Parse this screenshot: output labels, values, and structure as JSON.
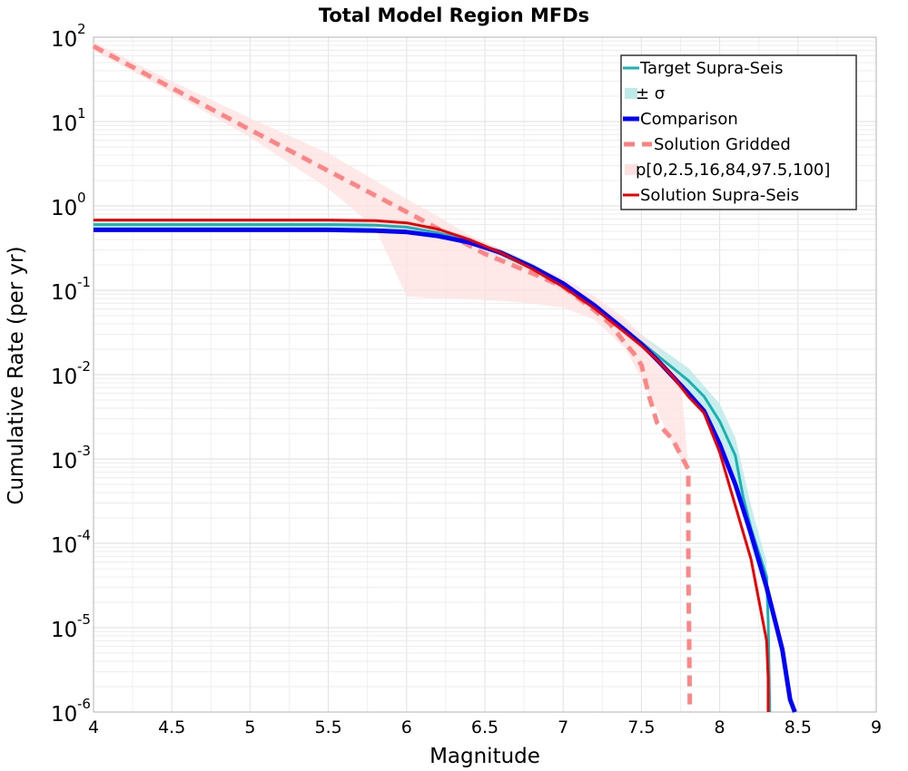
{
  "chart_data": {
    "type": "line",
    "title": "Total Model Region MFDs",
    "xlabel": "Magnitude",
    "ylabel": "Cumulative Rate (per yr)",
    "xlim": [
      4,
      9
    ],
    "ylim": [
      1e-06,
      100
    ],
    "yscale": "log",
    "grid": true,
    "legend_position": "top-right",
    "x_ticks": [
      "4",
      "4.5",
      "5",
      "5.5",
      "6",
      "6.5",
      "7",
      "7.5",
      "8",
      "8.5",
      "9"
    ],
    "y_ticks": [
      {
        "base": "10",
        "exp": "2",
        "value": 100
      },
      {
        "base": "10",
        "exp": "1",
        "value": 10
      },
      {
        "base": "10",
        "exp": "0",
        "value": 1
      },
      {
        "base": "10",
        "exp": "-1",
        "value": 0.1
      },
      {
        "base": "10",
        "exp": "-2",
        "value": 0.01
      },
      {
        "base": "10",
        "exp": "-3",
        "value": 0.001
      },
      {
        "base": "10",
        "exp": "-4",
        "value": 0.0001
      },
      {
        "base": "10",
        "exp": "-5",
        "value": 1e-05
      },
      {
        "base": "10",
        "exp": "-6",
        "value": 1e-06
      }
    ],
    "series": [
      {
        "name": "Target Supra-Seis",
        "color": "#17b2b2",
        "style": "solid",
        "x": [
          4.0,
          5.0,
          5.5,
          5.8,
          6.0,
          6.2,
          6.4,
          6.6,
          6.8,
          7.0,
          7.2,
          7.4,
          7.5,
          7.6,
          7.7,
          7.8,
          7.9,
          8.0,
          8.1,
          8.15,
          8.2,
          8.3,
          8.31,
          8.32
        ],
        "y": [
          0.6,
          0.6,
          0.6,
          0.59,
          0.56,
          0.48,
          0.38,
          0.27,
          0.18,
          0.11,
          0.063,
          0.033,
          0.024,
          0.017,
          0.012,
          0.0085,
          0.0055,
          0.0028,
          0.0011,
          0.00035,
          0.00015,
          4e-05,
          1.2e-05,
          1e-06
        ]
      },
      {
        "name": "± σ",
        "color": "#bfeaea",
        "style": "band",
        "x": [
          4.0,
          5.5,
          5.8,
          6.0,
          6.2,
          6.4,
          6.6,
          6.8,
          7.0,
          7.2,
          7.4,
          7.6,
          7.8,
          8.0,
          8.1,
          8.2,
          8.3
        ],
        "y_low": [
          0.55,
          0.55,
          0.54,
          0.51,
          0.43,
          0.34,
          0.24,
          0.16,
          0.097,
          0.055,
          0.028,
          0.014,
          0.0065,
          0.0018,
          0.0006,
          9e-05,
          2.5e-05
        ],
        "y_high": [
          0.68,
          0.68,
          0.67,
          0.64,
          0.55,
          0.44,
          0.31,
          0.21,
          0.13,
          0.075,
          0.04,
          0.022,
          0.012,
          0.0045,
          0.0018,
          0.00028,
          6e-05
        ]
      },
      {
        "name": "Comparison",
        "color": "#0000ff",
        "style": "thick",
        "x": [
          4.0,
          5.0,
          5.5,
          5.8,
          6.0,
          6.2,
          6.4,
          6.6,
          6.8,
          7.0,
          7.2,
          7.4,
          7.5,
          7.6,
          7.7,
          7.8,
          7.9,
          8.0,
          8.1,
          8.2,
          8.3,
          8.4,
          8.45,
          8.48
        ],
        "y": [
          0.52,
          0.52,
          0.52,
          0.51,
          0.49,
          0.44,
          0.37,
          0.28,
          0.19,
          0.12,
          0.066,
          0.033,
          0.023,
          0.015,
          0.0095,
          0.006,
          0.0037,
          0.0015,
          0.0005,
          0.00013,
          3e-05,
          5.5e-06,
          1.4e-06,
          1e-06
        ]
      },
      {
        "name": "Solution Gridded",
        "color": "#ff7f7f",
        "style": "dashed",
        "x": [
          4.0,
          4.5,
          5.0,
          5.5,
          6.0,
          6.5,
          6.8,
          7.0,
          7.2,
          7.3,
          7.4,
          7.45,
          7.5,
          7.55,
          7.6,
          7.7,
          7.8,
          7.8,
          7.81
        ],
        "y": [
          78,
          25,
          8,
          2.6,
          0.85,
          0.27,
          0.16,
          0.11,
          0.058,
          0.04,
          0.023,
          0.018,
          0.013,
          0.0055,
          0.0027,
          0.0017,
          0.00075,
          5e-05,
          1e-06
        ]
      },
      {
        "name": "p[0,2.5,16,84,97.5,100]",
        "color": "#ffe0e0",
        "style": "band",
        "x": [
          4.0,
          4.5,
          5.0,
          5.5,
          5.8,
          6.0,
          6.2,
          6.4,
          6.6,
          6.8,
          7.0,
          7.2,
          7.4,
          7.5,
          7.6,
          7.7,
          7.75,
          7.8
        ],
        "y_low": [
          70,
          22,
          6.5,
          1.6,
          0.55,
          0.085,
          0.08,
          0.078,
          0.075,
          0.07,
          0.062,
          0.045,
          0.02,
          0.009,
          0.0038,
          0.0015,
          0.001,
          0.0007
        ],
        "y_high": [
          88,
          30,
          11,
          4.2,
          2.0,
          1.2,
          0.75,
          0.45,
          0.3,
          0.2,
          0.14,
          0.085,
          0.045,
          0.03,
          0.02,
          0.0125,
          0.01,
          0.0008
        ]
      },
      {
        "name": "Solution Supra-Seis",
        "color": "#ee0000",
        "style": "solid",
        "x": [
          4.0,
          5.0,
          5.5,
          5.8,
          6.0,
          6.2,
          6.4,
          6.6,
          6.8,
          7.0,
          7.2,
          7.4,
          7.5,
          7.6,
          7.7,
          7.8,
          7.9,
          8.0,
          8.1,
          8.2,
          8.3,
          8.31,
          8.31
        ],
        "y": [
          0.68,
          0.68,
          0.68,
          0.67,
          0.63,
          0.53,
          0.4,
          0.28,
          0.18,
          0.11,
          0.061,
          0.031,
          0.022,
          0.015,
          0.0095,
          0.0055,
          0.0035,
          0.0012,
          0.00028,
          6.5e-05,
          7e-06,
          2.5e-06,
          1e-06
        ]
      }
    ]
  }
}
